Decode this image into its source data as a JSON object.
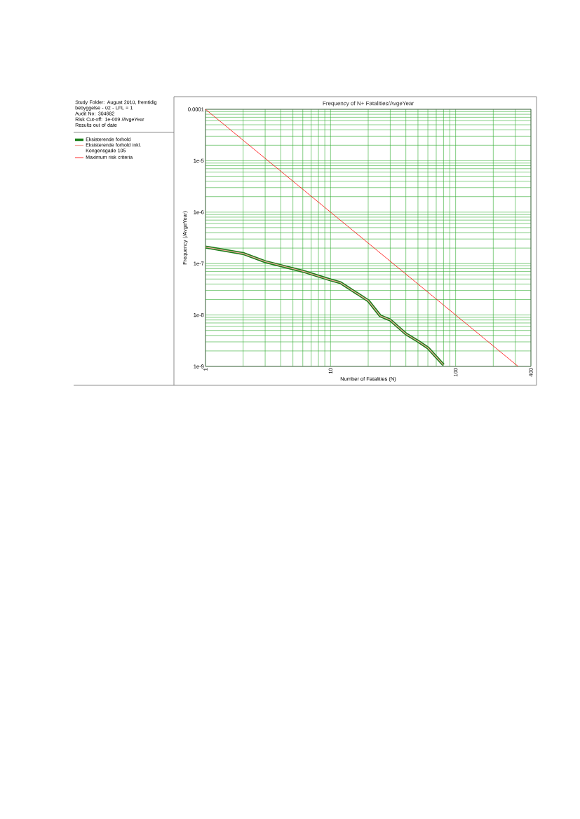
{
  "chart_data": {
    "type": "line",
    "title": "Frequency of N+ Fatalities/AvgeYear",
    "xlabel": "Number of Fatalities (N)",
    "ylabel": "Frequency (/AvgeYear)",
    "log": "xy",
    "grid": true,
    "legend": "left",
    "xlim": [
      1,
      400
    ],
    "xticks": [
      1,
      10,
      100,
      400
    ],
    "ylim": [
      1e-09,
      0.0001
    ],
    "yticks": [
      {
        "value": 0.0001,
        "label": "0.0001"
      },
      {
        "value": 1e-05,
        "label": "1e-5"
      },
      {
        "value": 1e-06,
        "label": "1e-6"
      },
      {
        "value": 1e-07,
        "label": "1e-7"
      },
      {
        "value": 1e-08,
        "label": "1e-8"
      },
      {
        "value": 1e-09,
        "label": "1e-9"
      }
    ],
    "series": [
      {
        "name": "Eksisterende forhold",
        "color": "#1a7f1a",
        "x": [
          1,
          2,
          3,
          6,
          10,
          12,
          20,
          25,
          30,
          40,
          50,
          60,
          80
        ],
        "values": [
          2.1e-07,
          1.57e-07,
          1.09e-07,
          7.1e-08,
          4.8e-08,
          4.25e-08,
          1.9e-08,
          9.6e-09,
          8e-09,
          4.3e-09,
          3.1e-09,
          2.3e-09,
          1.07e-09
        ]
      },
      {
        "name": "Eksisterende forhold inkl. Kongensgade 105",
        "color": "#f4a8a0",
        "x": [
          1,
          2,
          3,
          6,
          10,
          12,
          20,
          25,
          30,
          40,
          50,
          60,
          80
        ],
        "values": [
          2.1e-07,
          1.57e-07,
          1.09e-07,
          7.1e-08,
          4.8e-08,
          4.25e-08,
          1.9e-08,
          9.6e-09,
          8e-09,
          4.3e-09,
          3.1e-09,
          2.3e-09,
          1.07e-09
        ]
      },
      {
        "name": "Maximum risk criteria",
        "color": "#ff0000",
        "x": [
          1,
          316.2
        ],
        "values": [
          0.0001,
          1e-09
        ]
      }
    ],
    "annotations": [
      "Study Folder: August 2010, fremtidig bebyggelse - 02 - LFL = 1",
      "Audit No: 304682",
      "Risk Cut-off: 1e-009 /AvgeYear",
      "Results out of date"
    ]
  }
}
